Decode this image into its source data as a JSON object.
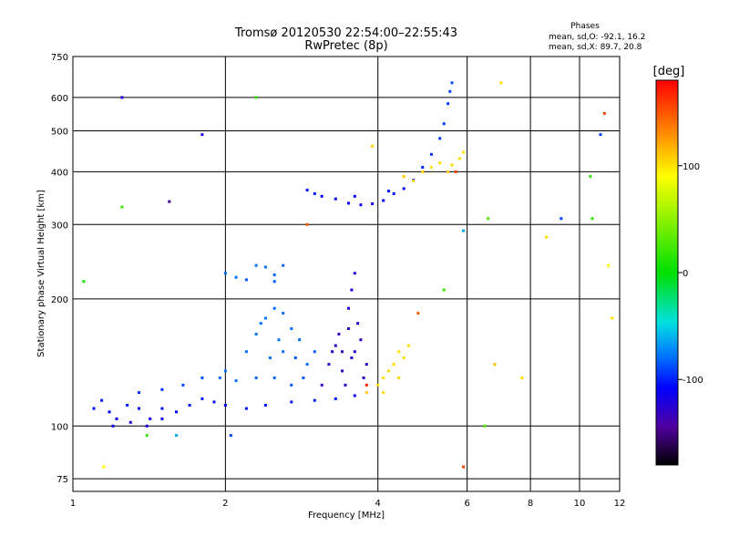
{
  "chart_data": {
    "type": "scatter",
    "title": "Tromsø 20120530 22:54:00–22:55:43",
    "subtitle": "RwPretec (8p)",
    "stats": {
      "heading": "Phases",
      "line_o": "mean, sd,O:  -92.1, 16.2",
      "line_x": "mean, sd,X:  89.7, 20.8"
    },
    "xlabel": "Frequency [MHz]",
    "ylabel": "Stationary phase Virtual Height [km]",
    "x_scale": "log",
    "y_scale": "log",
    "xlim": [
      1,
      12
    ],
    "ylim": [
      70,
      750
    ],
    "x_ticks": [
      1,
      2,
      4,
      6,
      8,
      10,
      12
    ],
    "y_ticks": [
      75,
      100,
      200,
      300,
      400,
      500,
      600,
      750
    ],
    "grid": true,
    "colorbar": {
      "label": "[deg]",
      "range": [
        -180,
        180
      ],
      "ticks": [
        100,
        0,
        -100
      ]
    },
    "series": [
      {
        "values": [
          [
            1.1,
            110,
            -105
          ],
          [
            1.14,
            115,
            -100
          ],
          [
            1.18,
            108,
            -105
          ],
          [
            1.22,
            104,
            -110
          ],
          [
            1.28,
            112,
            -100
          ],
          [
            1.35,
            110,
            -105
          ],
          [
            1.42,
            104,
            -115
          ],
          [
            1.5,
            110,
            -100
          ],
          [
            1.6,
            108,
            -105
          ],
          [
            1.7,
            112,
            -100
          ],
          [
            1.8,
            116,
            -100
          ],
          [
            1.9,
            114,
            -100
          ],
          [
            2.0,
            112,
            -105
          ],
          [
            2.2,
            110,
            -100
          ],
          [
            2.4,
            112,
            -100
          ],
          [
            2.7,
            114,
            -100
          ],
          [
            3.0,
            115,
            -100
          ],
          [
            3.3,
            116,
            -100
          ],
          [
            3.6,
            118,
            -110
          ]
        ]
      },
      {
        "values": [
          [
            1.2,
            100,
            -112
          ],
          [
            1.3,
            102,
            -118
          ],
          [
            1.4,
            100,
            -115
          ],
          [
            1.5,
            104,
            -112
          ],
          [
            1.35,
            120,
            -95
          ],
          [
            1.5,
            122,
            -95
          ],
          [
            1.65,
            125,
            -90
          ],
          [
            1.8,
            130,
            -85
          ],
          [
            1.95,
            130,
            -80
          ],
          [
            2.0,
            135,
            -80
          ],
          [
            2.1,
            128,
            -80
          ]
        ]
      },
      {
        "values": [
          [
            2.2,
            150,
            -80
          ],
          [
            2.3,
            165,
            -78
          ],
          [
            2.4,
            180,
            -78
          ],
          [
            2.5,
            190,
            -82
          ],
          [
            2.6,
            150,
            -80
          ],
          [
            2.7,
            170,
            -80
          ],
          [
            2.8,
            160,
            -82
          ],
          [
            2.9,
            140,
            -82
          ],
          [
            3.0,
            150,
            -85
          ],
          [
            2.3,
            130,
            -82
          ],
          [
            2.5,
            130,
            -82
          ],
          [
            2.7,
            125,
            -85
          ],
          [
            2.45,
            145,
            -80
          ],
          [
            2.55,
            160,
            -80
          ],
          [
            2.75,
            145,
            -85
          ],
          [
            2.85,
            130,
            -85
          ],
          [
            2.35,
            175,
            -80
          ],
          [
            2.6,
            185,
            -80
          ]
        ]
      },
      {
        "values": [
          [
            3.1,
            125,
            -130
          ],
          [
            3.2,
            140,
            -130
          ],
          [
            3.3,
            155,
            -125
          ],
          [
            3.4,
            150,
            -130
          ],
          [
            3.5,
            170,
            -128
          ],
          [
            3.6,
            150,
            -125
          ],
          [
            3.7,
            160,
            -130
          ],
          [
            3.8,
            140,
            -128
          ],
          [
            3.5,
            190,
            -120
          ],
          [
            3.55,
            210,
            -120
          ],
          [
            3.6,
            230,
            -120
          ],
          [
            3.4,
            135,
            -130
          ],
          [
            3.25,
            150,
            -125
          ],
          [
            3.65,
            175,
            -125
          ],
          [
            3.75,
            130,
            -128
          ],
          [
            3.35,
            165,
            -130
          ],
          [
            3.55,
            145,
            -128
          ],
          [
            3.45,
            125,
            -130
          ]
        ]
      },
      {
        "values": [
          [
            2.0,
            230,
            -80
          ],
          [
            2.1,
            225,
            -80
          ],
          [
            2.2,
            222,
            -85
          ],
          [
            2.3,
            240,
            -80
          ],
          [
            2.4,
            238,
            -80
          ],
          [
            2.5,
            220,
            -85
          ],
          [
            2.6,
            240,
            -82
          ],
          [
            2.5,
            228,
            -82
          ]
        ]
      },
      {
        "values": [
          [
            2.9,
            362,
            -100
          ],
          [
            3.0,
            355,
            -100
          ],
          [
            3.1,
            350,
            -105
          ],
          [
            3.3,
            345,
            -108
          ],
          [
            3.5,
            337,
            -110
          ],
          [
            3.7,
            334,
            -110
          ],
          [
            3.9,
            336,
            -108
          ],
          [
            4.1,
            342,
            -105
          ],
          [
            4.3,
            355,
            -100
          ],
          [
            4.5,
            365,
            -100
          ],
          [
            4.7,
            382,
            -98
          ],
          [
            4.9,
            410,
            -95
          ],
          [
            5.1,
            440,
            -95
          ],
          [
            5.3,
            480,
            -92
          ],
          [
            5.4,
            520,
            -92
          ],
          [
            5.5,
            580,
            -90
          ],
          [
            5.55,
            620,
            -90
          ],
          [
            5.6,
            650,
            -88
          ],
          [
            4.2,
            360,
            -100
          ],
          [
            3.6,
            350,
            -105
          ]
        ]
      },
      {
        "values": [
          [
            3.8,
            120,
            115
          ],
          [
            4.0,
            125,
            110
          ],
          [
            4.1,
            130,
            110
          ],
          [
            4.2,
            135,
            112
          ],
          [
            4.3,
            140,
            110
          ],
          [
            4.4,
            150,
            108
          ],
          [
            4.5,
            145,
            110
          ],
          [
            4.6,
            155,
            110
          ],
          [
            4.1,
            120,
            112
          ],
          [
            4.4,
            130,
            110
          ]
        ]
      },
      {
        "values": [
          [
            4.7,
            380,
            110
          ],
          [
            4.9,
            400,
            112
          ],
          [
            5.1,
            410,
            108
          ],
          [
            5.3,
            420,
            110
          ],
          [
            5.5,
            400,
            115
          ],
          [
            5.6,
            415,
            112
          ],
          [
            5.8,
            430,
            110
          ],
          [
            5.9,
            445,
            108
          ],
          [
            4.5,
            390,
            115
          ],
          [
            3.9,
            460,
            112
          ]
        ]
      },
      {
        "values": [
          [
            1.25,
            330,
            25
          ],
          [
            1.05,
            220,
            10
          ],
          [
            1.4,
            95,
            20
          ],
          [
            1.6,
            95,
            -60
          ],
          [
            2.05,
            95,
            -90
          ],
          [
            2.3,
            600,
            20
          ],
          [
            6.6,
            310,
            30
          ],
          [
            6.5,
            100,
            30
          ],
          [
            10.6,
            310,
            20
          ],
          [
            10.5,
            390,
            20
          ],
          [
            9.2,
            310,
            -90
          ],
          [
            11.0,
            490,
            -90
          ],
          [
            11.2,
            550,
            160
          ],
          [
            11.4,
            240,
            100
          ],
          [
            11.6,
            180,
            110
          ],
          [
            7.0,
            650,
            110
          ],
          [
            6.8,
            140,
            120
          ],
          [
            1.25,
            600,
            -120
          ],
          [
            1.8,
            490,
            -120
          ],
          [
            1.55,
            340,
            -150
          ],
          [
            8.6,
            280,
            110
          ],
          [
            4.8,
            185,
            150
          ],
          [
            5.7,
            400,
            160
          ],
          [
            5.9,
            80,
            160
          ],
          [
            3.8,
            125,
            170
          ],
          [
            5.4,
            210,
            20
          ],
          [
            5.9,
            290,
            -60
          ],
          [
            1.15,
            80,
            100
          ],
          [
            7.7,
            130,
            110
          ],
          [
            2.9,
            300,
            150
          ]
        ]
      }
    ]
  }
}
